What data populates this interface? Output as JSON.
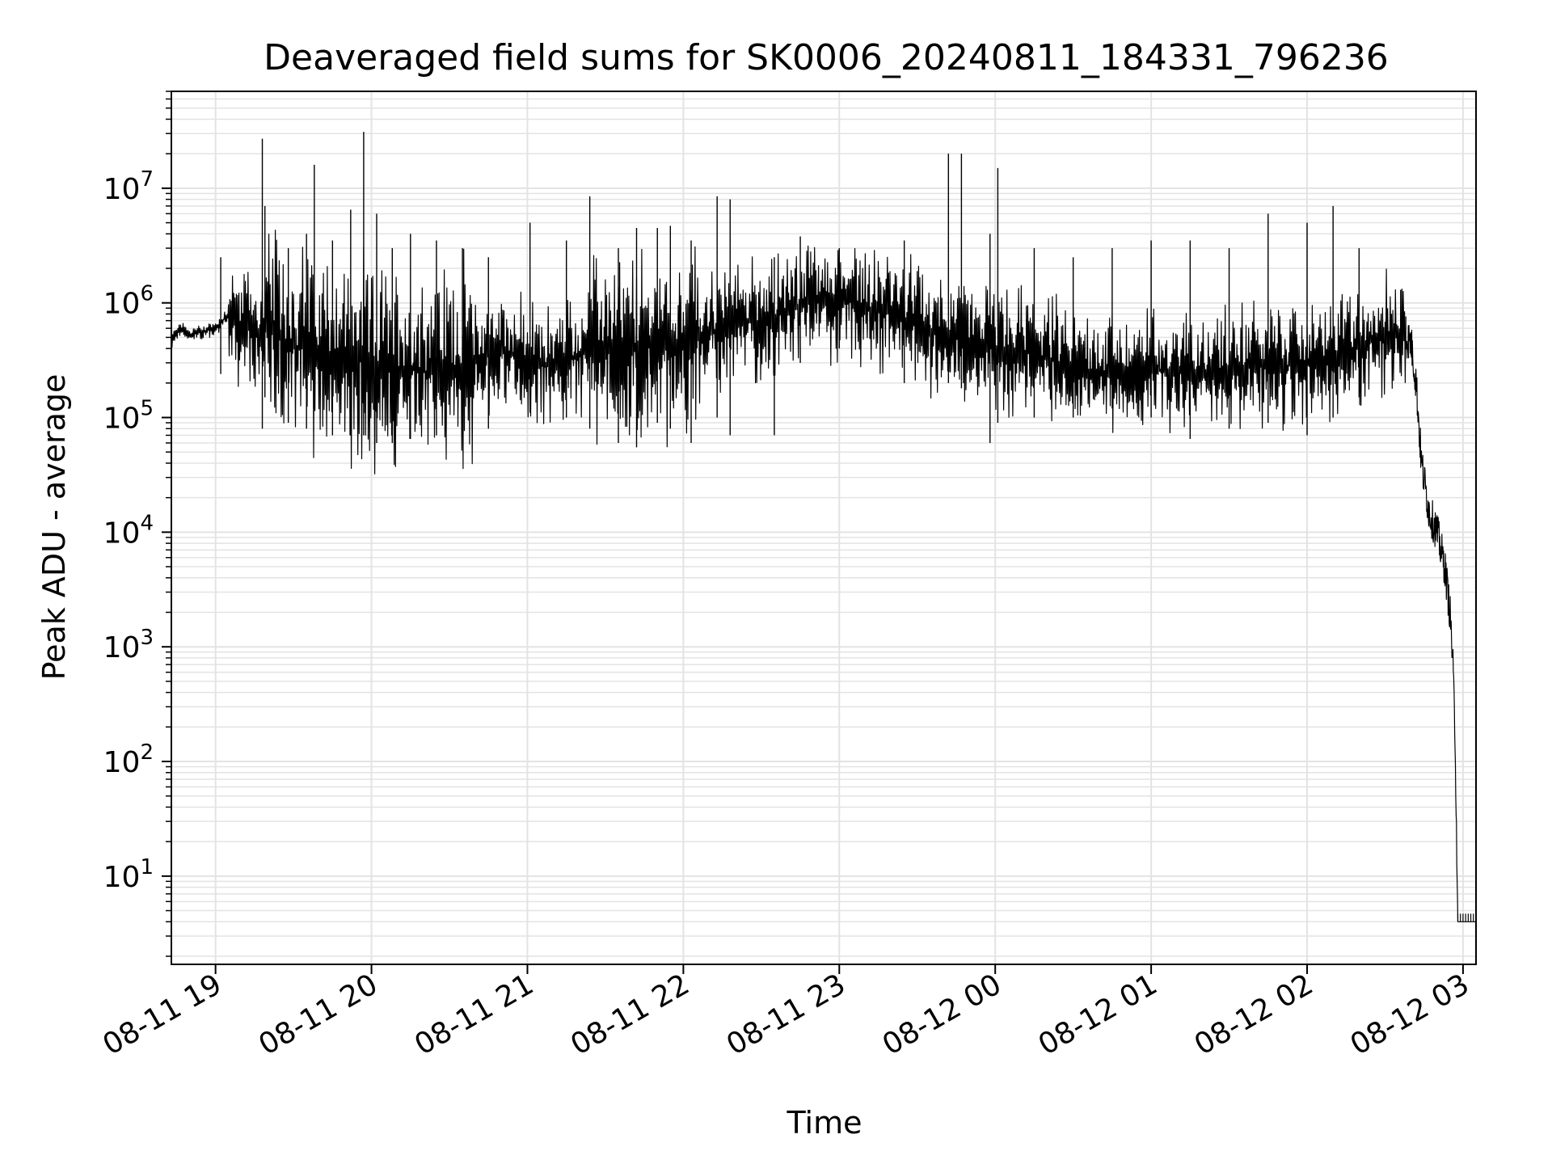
{
  "chart_data": {
    "type": "line",
    "title": "Deaveraged field sums for SK0006_20240811_184331_796236",
    "xlabel": "Time",
    "ylabel": "Peak ADU - average",
    "x_range": [
      "2024-08-11 18:43",
      "2024-08-12 03:05"
    ],
    "y_scale": "log",
    "ylim": [
      1.7,
      70000000
    ],
    "grid": true,
    "x_ticks": [
      {
        "value": "2024-08-11 19:00",
        "label": "08-11 19"
      },
      {
        "value": "2024-08-11 20:00",
        "label": "08-11 20"
      },
      {
        "value": "2024-08-11 21:00",
        "label": "08-11 21"
      },
      {
        "value": "2024-08-11 22:00",
        "label": "08-11 22"
      },
      {
        "value": "2024-08-11 23:00",
        "label": "08-11 23"
      },
      {
        "value": "2024-08-12 00:00",
        "label": "08-12 00"
      },
      {
        "value": "2024-08-12 01:00",
        "label": "08-12 01"
      },
      {
        "value": "2024-08-12 02:00",
        "label": "08-12 02"
      },
      {
        "value": "2024-08-12 03:00",
        "label": "08-12 03"
      }
    ],
    "y_ticks": [
      {
        "value": 10,
        "base": "10",
        "exp": "1"
      },
      {
        "value": 100,
        "base": "10",
        "exp": "2"
      },
      {
        "value": 1000,
        "base": "10",
        "exp": "3"
      },
      {
        "value": 10000,
        "base": "10",
        "exp": "4"
      },
      {
        "value": 100000,
        "base": "10",
        "exp": "5"
      },
      {
        "value": 1000000,
        "base": "10",
        "exp": "6"
      },
      {
        "value": 10000000,
        "base": "10",
        "exp": "7"
      }
    ],
    "line_color": "#000000",
    "grid_color": "#e3e3e3",
    "series": [
      {
        "points": [
          [
            "2024-08-11 18:43",
            450000
          ],
          [
            "2024-08-11 18:46",
            620000
          ],
          [
            "2024-08-11 18:50",
            520000
          ],
          [
            "2024-08-11 18:55",
            560000
          ],
          [
            "2024-08-11 19:00",
            600000
          ],
          [
            "2024-08-11 19:05",
            800000
          ],
          [
            "2024-08-11 19:10",
            650000
          ],
          [
            "2024-08-11 19:15",
            550000
          ],
          [
            "2024-08-11 19:20",
            600000
          ],
          [
            "2024-08-11 19:25",
            500000
          ],
          [
            "2024-08-11 19:30",
            400000
          ],
          [
            "2024-08-11 19:35",
            450000
          ],
          [
            "2024-08-11 19:40",
            350000
          ],
          [
            "2024-08-11 19:45",
            380000
          ],
          [
            "2024-08-11 19:50",
            300000
          ],
          [
            "2024-08-11 19:55",
            320000
          ],
          [
            "2024-08-11 20:00",
            260000
          ],
          [
            "2024-08-11 20:10",
            280000
          ],
          [
            "2024-08-11 20:20",
            250000
          ],
          [
            "2024-08-11 20:30",
            270000
          ],
          [
            "2024-08-11 20:40",
            320000
          ],
          [
            "2024-08-11 20:50",
            380000
          ],
          [
            "2024-08-11 21:00",
            300000
          ],
          [
            "2024-08-11 21:10",
            280000
          ],
          [
            "2024-08-11 21:20",
            350000
          ],
          [
            "2024-08-11 21:30",
            400000
          ],
          [
            "2024-08-11 21:40",
            380000
          ],
          [
            "2024-08-11 21:50",
            420000
          ],
          [
            "2024-08-11 22:00",
            450000
          ],
          [
            "2024-08-11 22:10",
            550000
          ],
          [
            "2024-08-11 22:20",
            650000
          ],
          [
            "2024-08-11 22:30",
            700000
          ],
          [
            "2024-08-11 22:40",
            850000
          ],
          [
            "2024-08-11 22:50",
            1000000
          ],
          [
            "2024-08-11 23:00",
            1050000
          ],
          [
            "2024-08-11 23:10",
            950000
          ],
          [
            "2024-08-11 23:20",
            800000
          ],
          [
            "2024-08-11 23:30",
            650000
          ],
          [
            "2024-08-11 23:40",
            550000
          ],
          [
            "2024-08-11 23:50",
            480000
          ],
          [
            "2024-08-12 00:00",
            400000
          ],
          [
            "2024-08-12 00:10",
            380000
          ],
          [
            "2024-08-12 00:20",
            330000
          ],
          [
            "2024-08-12 00:30",
            280000
          ],
          [
            "2024-08-12 00:40",
            250000
          ],
          [
            "2024-08-12 00:50",
            240000
          ],
          [
            "2024-08-12 01:00",
            250000
          ],
          [
            "2024-08-12 01:10",
            260000
          ],
          [
            "2024-08-12 01:20",
            240000
          ],
          [
            "2024-08-12 01:30",
            270000
          ],
          [
            "2024-08-12 01:40",
            300000
          ],
          [
            "2024-08-12 01:50",
            280000
          ],
          [
            "2024-08-12 02:00",
            300000
          ],
          [
            "2024-08-12 02:10",
            350000
          ],
          [
            "2024-08-12 02:20",
            420000
          ],
          [
            "2024-08-12 02:30",
            500000
          ],
          [
            "2024-08-12 02:36",
            560000
          ],
          [
            "2024-08-12 02:40",
            450000
          ],
          [
            "2024-08-12 02:42",
            200000
          ],
          [
            "2024-08-12 02:44",
            40000
          ],
          [
            "2024-08-12 02:47",
            15000
          ],
          [
            "2024-08-12 02:50",
            10000
          ],
          [
            "2024-08-12 02:53",
            5000
          ],
          [
            "2024-08-12 02:55",
            2000
          ],
          [
            "2024-08-12 02:56",
            800
          ],
          [
            "2024-08-12 02:57",
            150
          ],
          [
            "2024-08-12 02:58",
            4
          ],
          [
            "2024-08-12 03:05",
            4
          ]
        ],
        "spikes": [
          [
            "2024-08-11 19:02",
            2500000,
            240000
          ],
          [
            "2024-08-11 19:18",
            27000000,
            80000
          ],
          [
            "2024-08-11 19:19",
            7000000,
            150000
          ],
          [
            "2024-08-11 19:28",
            3000000,
            90000
          ],
          [
            "2024-08-11 19:35",
            4000000,
            80000
          ],
          [
            "2024-08-11 19:38",
            16000000,
            120000
          ],
          [
            "2024-08-11 19:45",
            3500000,
            70000
          ],
          [
            "2024-08-11 19:52",
            6500000,
            70000
          ],
          [
            "2024-08-11 19:57",
            31000000,
            70000
          ],
          [
            "2024-08-11 20:02",
            6000000,
            60000
          ],
          [
            "2024-08-11 20:08",
            3000000,
            60000
          ],
          [
            "2024-08-11 20:15",
            4000000,
            65000
          ],
          [
            "2024-08-11 20:25",
            3500000,
            70000
          ],
          [
            "2024-08-11 20:35",
            3000000,
            75000
          ],
          [
            "2024-08-11 20:45",
            2500000,
            80000
          ],
          [
            "2024-08-11 21:01",
            5000000,
            110000
          ],
          [
            "2024-08-11 21:15",
            3500000,
            100000
          ],
          [
            "2024-08-11 21:24",
            8500000,
            80000
          ],
          [
            "2024-08-11 21:35",
            3000000,
            60000
          ],
          [
            "2024-08-11 21:42",
            4500000,
            55000
          ],
          [
            "2024-08-11 21:50",
            4500000,
            90000
          ],
          [
            "2024-08-11 21:55",
            4700000,
            80000
          ],
          [
            "2024-08-11 22:03",
            3500000,
            60000
          ],
          [
            "2024-08-11 22:13",
            8500000,
            100000
          ],
          [
            "2024-08-11 22:18",
            8000000,
            70000
          ],
          [
            "2024-08-11 22:35",
            2500000,
            70000
          ],
          [
            "2024-08-11 22:45",
            3800000,
            300000
          ],
          [
            "2024-08-11 23:00",
            3000000,
            400000
          ],
          [
            "2024-08-11 23:25",
            3500000,
            200000
          ],
          [
            "2024-08-11 23:42",
            20000000,
            200000
          ],
          [
            "2024-08-11 23:47",
            20000000,
            180000
          ],
          [
            "2024-08-11 23:58",
            4000000,
            60000
          ],
          [
            "2024-08-12 00:01",
            15000000,
            90000
          ],
          [
            "2024-08-12 00:15",
            3000000,
            100000
          ],
          [
            "2024-08-12 00:30",
            2500000,
            100000
          ],
          [
            "2024-08-12 00:45",
            3000000,
            120000
          ],
          [
            "2024-08-12 01:00",
            3500000,
            100000
          ],
          [
            "2024-08-12 01:15",
            3500000,
            65000
          ],
          [
            "2024-08-12 01:30",
            3000000,
            80000
          ],
          [
            "2024-08-12 01:45",
            6000000,
            90000
          ],
          [
            "2024-08-12 02:00",
            5000000,
            70000
          ],
          [
            "2024-08-12 02:10",
            7000000,
            100000
          ],
          [
            "2024-08-12 02:20",
            3000000,
            150000
          ],
          [
            "2024-08-12 02:36",
            1300000,
            400000
          ]
        ]
      }
    ]
  }
}
